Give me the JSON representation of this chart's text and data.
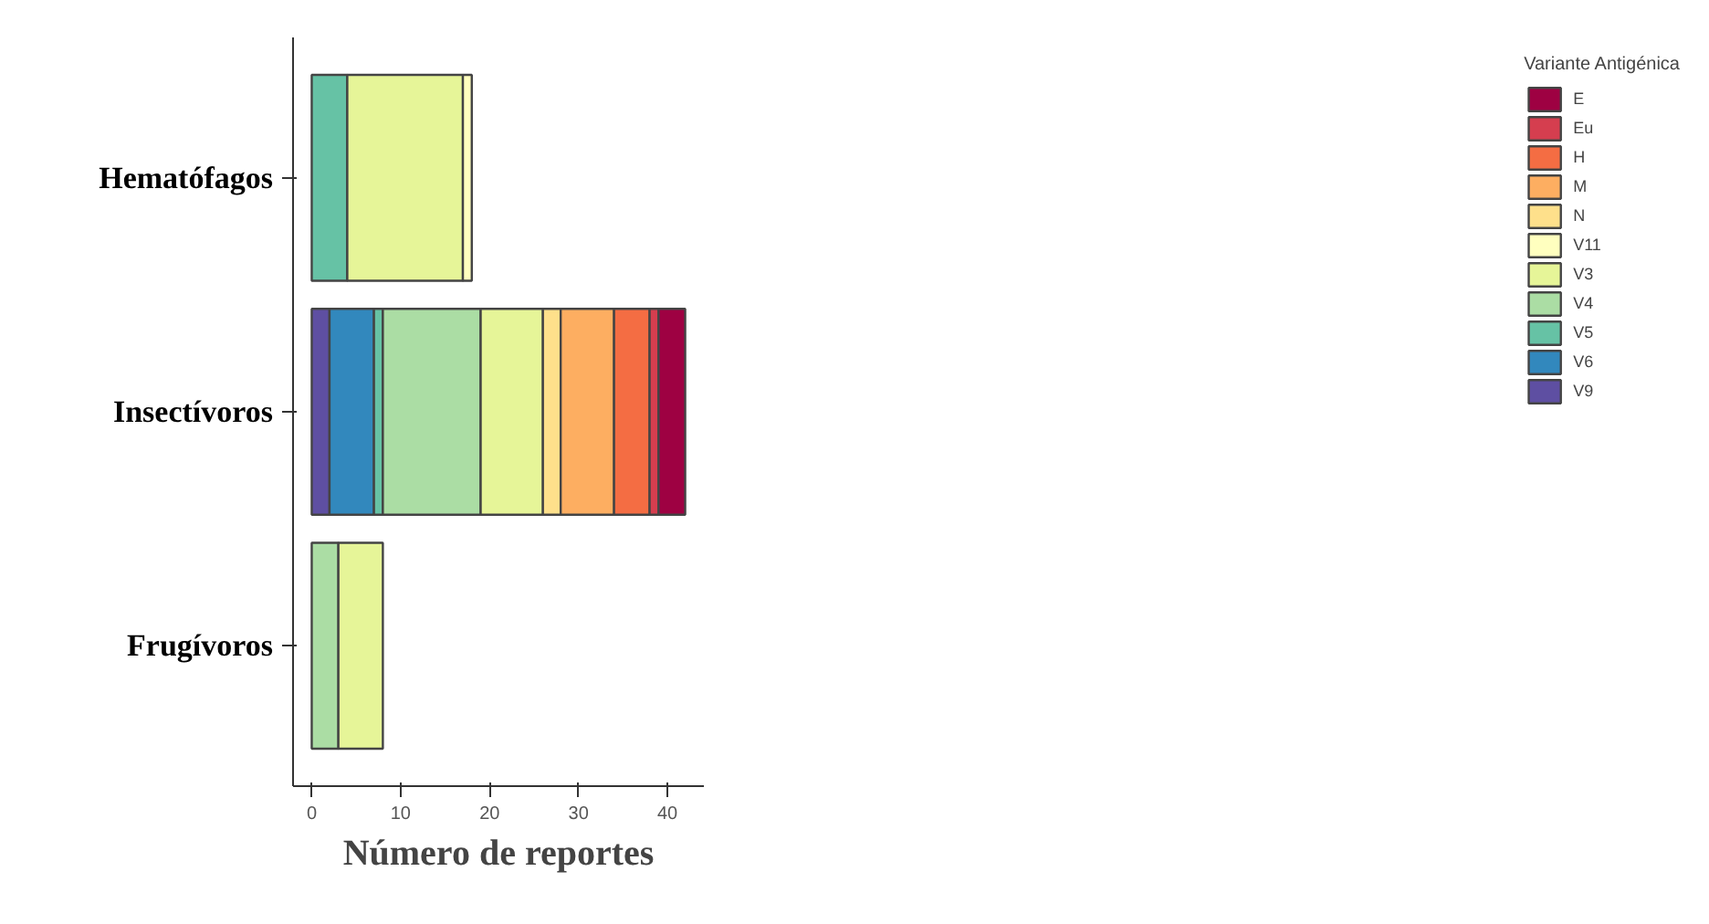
{
  "chart_data": {
    "type": "bar",
    "orientation": "horizontal",
    "stacked": true,
    "categories": [
      "Hematófagos",
      "Insectívoros",
      "Frugívoros"
    ],
    "xlabel": "Número de reportes",
    "legend_title": "Variante Antigénica",
    "legend": "right",
    "grid": false,
    "xlim": [
      -2.1,
      44.1
    ],
    "xticks": [
      0,
      10,
      20,
      30,
      40
    ],
    "series": [
      {
        "name": "V9",
        "color": "#5e4fa2",
        "values": [
          null,
          2,
          null
        ]
      },
      {
        "name": "V6",
        "color": "#3288bd",
        "values": [
          null,
          5,
          null
        ]
      },
      {
        "name": "V5",
        "color": "#66c2a5",
        "values": [
          4,
          1,
          null
        ]
      },
      {
        "name": "V4",
        "color": "#abdda4",
        "values": [
          null,
          11,
          3
        ]
      },
      {
        "name": "V3",
        "color": "#e6f598",
        "values": [
          13,
          7,
          5
        ]
      },
      {
        "name": "V11",
        "color": "#ffffbf",
        "values": [
          1,
          null,
          null
        ]
      },
      {
        "name": "N",
        "color": "#fee08b",
        "values": [
          null,
          2,
          null
        ]
      },
      {
        "name": "M",
        "color": "#fdae61",
        "values": [
          null,
          6,
          null
        ]
      },
      {
        "name": "H",
        "color": "#f46d43",
        "values": [
          null,
          4,
          null
        ]
      },
      {
        "name": "Eu",
        "color": "#d53e4f",
        "values": [
          null,
          1,
          null
        ]
      },
      {
        "name": "E",
        "color": "#9e0142",
        "values": [
          null,
          3,
          null
        ]
      }
    ]
  }
}
